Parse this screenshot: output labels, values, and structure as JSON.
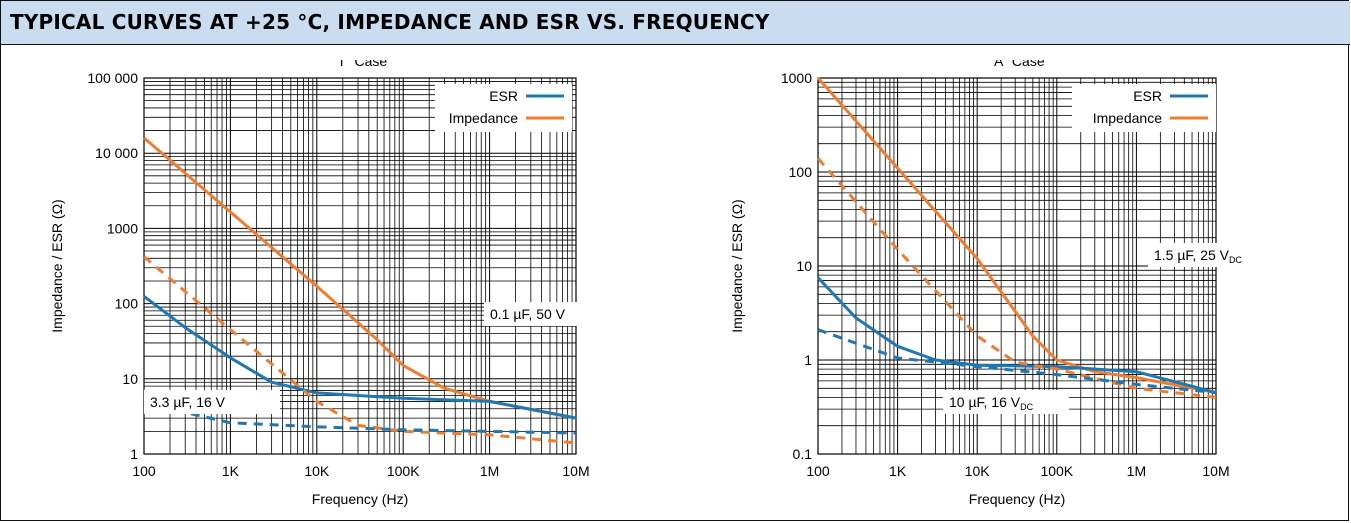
{
  "header": {
    "title": "TYPICAL CURVES AT +25 °C, IMPEDANCE AND ESR VS. FREQUENCY",
    "background": "#c9dcf0"
  },
  "colors": {
    "esr": "#1f77b4",
    "impedance": "#ed7d31"
  },
  "chart_data": [
    {
      "type": "line",
      "title": "“T” Case",
      "xlabel": "Frequency (Hz)",
      "ylabel": "Impedance / ESR (Ω)",
      "xscale": "log",
      "yscale": "log",
      "xlim": [
        100,
        10000000
      ],
      "ylim": [
        1,
        100000
      ],
      "grid": true,
      "xticks": [
        100,
        1000,
        10000,
        100000,
        1000000,
        10000000
      ],
      "xtick_labels": [
        "100",
        "1K",
        "10K",
        "100K",
        "1M",
        "10M"
      ],
      "yticks": [
        1,
        10,
        100,
        1000,
        10000,
        100000
      ],
      "ytick_labels": [
        "1",
        "10",
        "100",
        "1000",
        "10 000",
        "100 000"
      ],
      "legend": {
        "position": "top-right",
        "entries": [
          "ESR",
          "Impedance"
        ]
      },
      "annotations": [
        {
          "text": "0.1 µF, 50 V",
          "sub": ""
        },
        {
          "text": "3.3 µF, 16 V",
          "sub": ""
        }
      ],
      "series": [
        {
          "name": "Impedance",
          "style": "solid",
          "color": "#ed7d31",
          "x": [
            100,
            1000,
            10000,
            50000,
            100000,
            300000,
            1000000,
            10000000
          ],
          "y": [
            16000,
            1650,
            170,
            33,
            15,
            7.5,
            5,
            3
          ]
        },
        {
          "name": "ESR",
          "style": "solid",
          "color": "#1f77b4",
          "x": [
            100,
            300,
            1000,
            3000,
            10000,
            100000,
            1000000,
            10000000
          ],
          "y": [
            125,
            48,
            19,
            9,
            6.5,
            5.5,
            5,
            3
          ]
        },
        {
          "name": "Impedance",
          "style": "dashed",
          "color": "#ed7d31",
          "x": [
            100,
            1000,
            10000,
            30000,
            100000,
            1000000,
            10000000
          ],
          "y": [
            420,
            45,
            5,
            2.4,
            2,
            1.8,
            1.4
          ]
        },
        {
          "name": "ESR",
          "style": "dashed",
          "color": "#1f77b4",
          "x": [
            100,
            1000,
            10000,
            100000,
            1000000,
            10000000
          ],
          "y": [
            4.8,
            2.6,
            2.3,
            2.1,
            2,
            1.9
          ]
        }
      ]
    },
    {
      "type": "line",
      "title": "“A” Case",
      "xlabel": "Frequency (Hz)",
      "ylabel": "Impedance / ESR (Ω)",
      "xscale": "log",
      "yscale": "log",
      "xlim": [
        100,
        10000000
      ],
      "ylim": [
        0.1,
        1000
      ],
      "grid": true,
      "xticks": [
        100,
        1000,
        10000,
        100000,
        1000000,
        10000000
      ],
      "xtick_labels": [
        "100",
        "1K",
        "10K",
        "100K",
        "1M",
        "10M"
      ],
      "yticks": [
        0.1,
        1,
        10,
        100,
        1000
      ],
      "ytick_labels": [
        "0.1",
        "1",
        "10",
        "100",
        "1000"
      ],
      "legend": {
        "position": "top-right",
        "entries": [
          "ESR",
          "Impedance"
        ]
      },
      "annotations": [
        {
          "text": "1.5 µF, 25 V",
          "sub": "DC"
        },
        {
          "text": "10 µF, 16 V",
          "sub": "DC"
        }
      ],
      "series": [
        {
          "name": "Impedance",
          "style": "solid",
          "color": "#ed7d31",
          "x": [
            100,
            1000,
            10000,
            50000,
            100000,
            300000,
            1000000,
            10000000
          ],
          "y": [
            1000,
            110,
            12,
            1.8,
            1,
            0.75,
            0.65,
            0.45
          ]
        },
        {
          "name": "ESR",
          "style": "solid",
          "color": "#1f77b4",
          "x": [
            100,
            300,
            1000,
            3000,
            10000,
            100000,
            1000000,
            10000000
          ],
          "y": [
            7.5,
            2.8,
            1.4,
            1,
            0.88,
            0.85,
            0.75,
            0.45
          ]
        },
        {
          "name": "Impedance",
          "style": "dashed",
          "color": "#ed7d31",
          "x": [
            100,
            1000,
            10000,
            30000,
            100000,
            1000000,
            10000000
          ],
          "y": [
            140,
            15,
            1.8,
            0.95,
            0.8,
            0.5,
            0.4
          ]
        },
        {
          "name": "ESR",
          "style": "dashed",
          "color": "#1f77b4",
          "x": [
            100,
            1000,
            10000,
            100000,
            1000000,
            10000000
          ],
          "y": [
            2.1,
            1.05,
            0.85,
            0.7,
            0.55,
            0.45
          ]
        }
      ]
    }
  ]
}
